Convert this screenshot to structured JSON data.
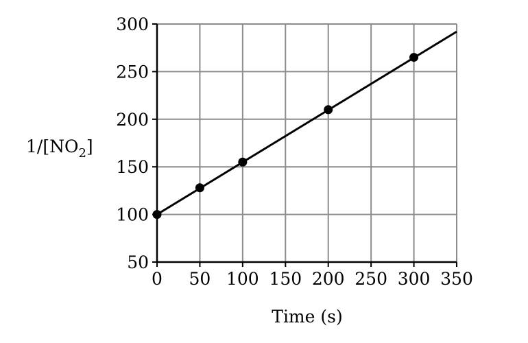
{
  "chart_data": {
    "type": "scatter",
    "title": "",
    "xlabel": "Time (s)",
    "ylabel": {
      "prefix": "1/[NO",
      "subscript": "2",
      "suffix": "]"
    },
    "xlim": [
      0,
      350
    ],
    "ylim": [
      50,
      300
    ],
    "x_ticks": [
      0,
      50,
      100,
      150,
      200,
      250,
      300,
      350
    ],
    "y_ticks": [
      50,
      100,
      150,
      200,
      250,
      300
    ],
    "grid": true,
    "series": [
      {
        "points": [
          {
            "x": 0,
            "y": 100
          },
          {
            "x": 50,
            "y": 128
          },
          {
            "x": 100,
            "y": 155
          },
          {
            "x": 200,
            "y": 210
          },
          {
            "x": 300,
            "y": 265
          }
        ]
      }
    ],
    "fit_line": {
      "type": "linear",
      "x": [
        0,
        350
      ],
      "y": [
        100,
        292
      ]
    },
    "colors": {
      "grid": "#8c8c8c",
      "axis": "#000000",
      "line": "#000000",
      "marker": "#000000"
    }
  }
}
